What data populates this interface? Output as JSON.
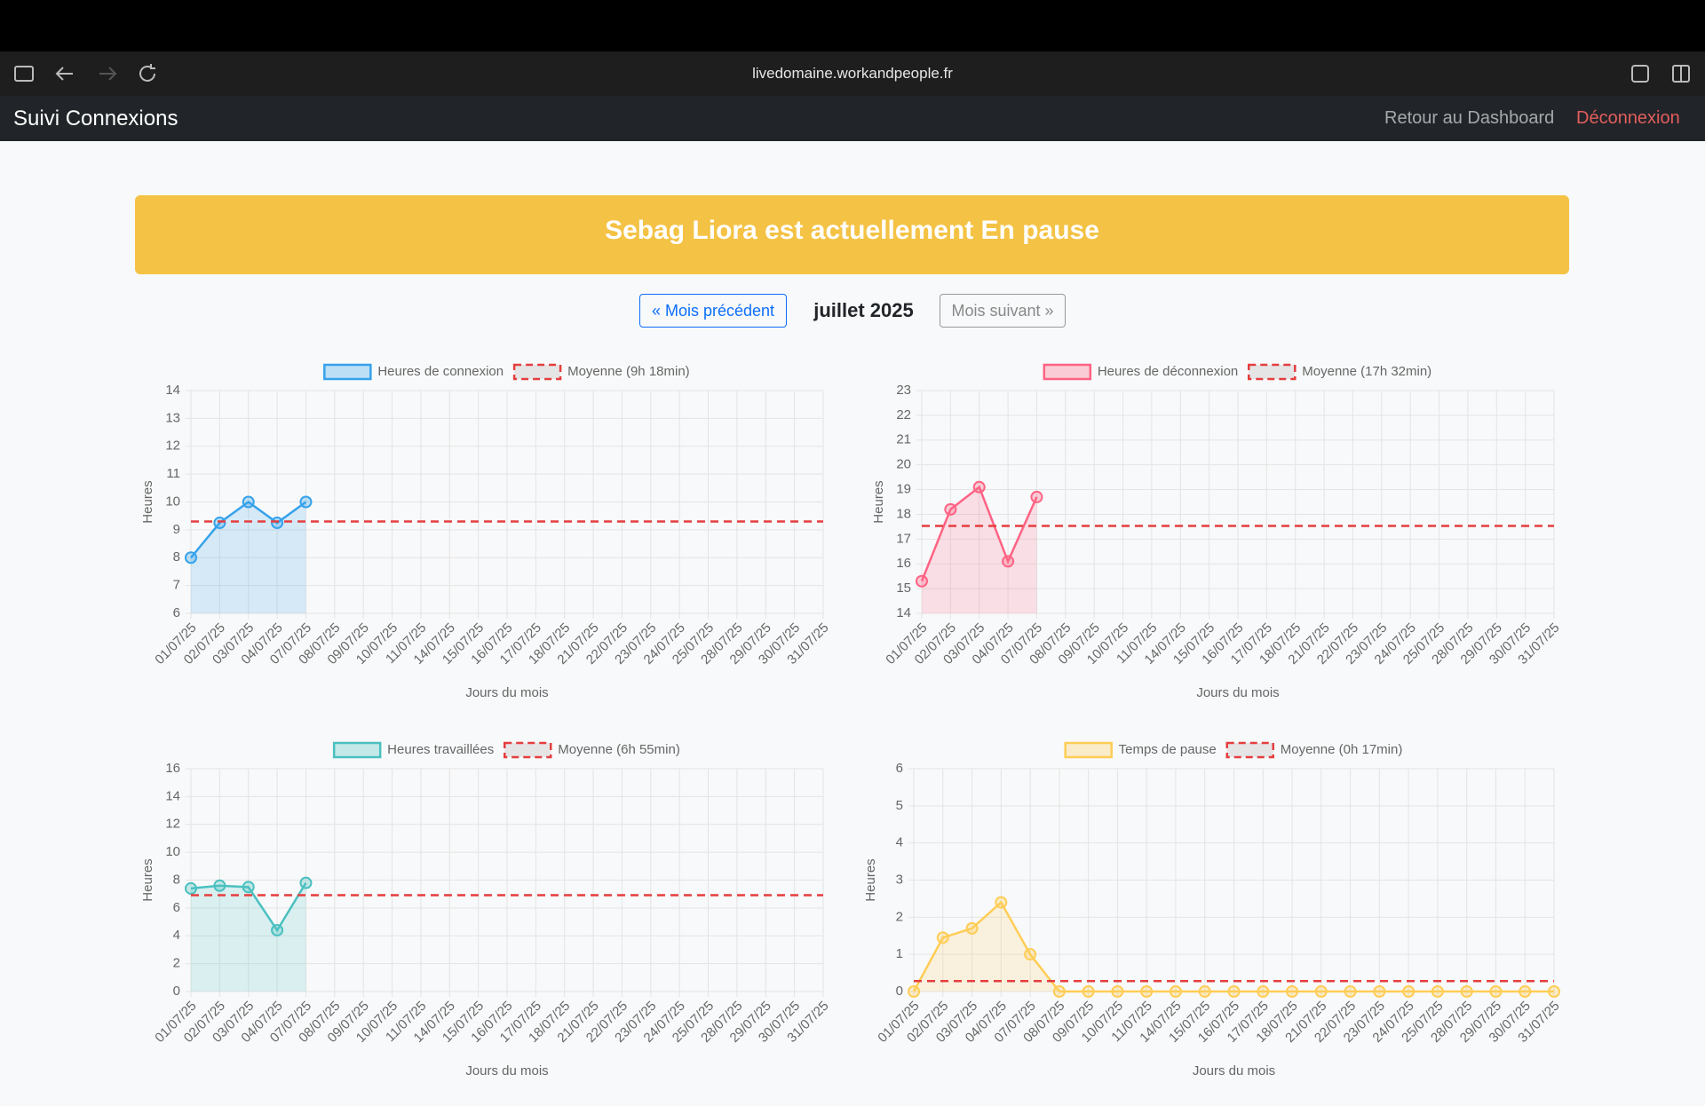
{
  "browser": {
    "url": "livedomaine.workandpeople.fr"
  },
  "navbar": {
    "brand": "Suivi Connexions",
    "links": [
      "Retour au Dashboard",
      "Déconnexion"
    ]
  },
  "banner": {
    "text": "Sebag Liora est actuellement En pause"
  },
  "month_nav": {
    "previous": "« Mois précédent",
    "current": "juillet 2025",
    "next": "Mois suivant »"
  },
  "chart_data": [
    {
      "type": "line",
      "x_label": "Jours du mois",
      "y_label": "Heures",
      "grid": true,
      "categories": [
        "01/07/25",
        "02/07/25",
        "03/07/25",
        "04/07/25",
        "07/07/25",
        "08/07/25",
        "09/07/25",
        "10/07/25",
        "11/07/25",
        "14/07/25",
        "15/07/25",
        "16/07/25",
        "17/07/25",
        "18/07/25",
        "21/07/25",
        "22/07/25",
        "23/07/25",
        "24/07/25",
        "25/07/25",
        "28/07/25",
        "29/07/25",
        "30/07/25",
        "31/07/25"
      ],
      "series": [
        {
          "name": "Heures de connexion",
          "color": "#36a2eb",
          "values": [
            8,
            9.25,
            10,
            9.25,
            10,
            null,
            null,
            null,
            null,
            null,
            null,
            null,
            null,
            null,
            null,
            null,
            null,
            null,
            null,
            null,
            null,
            null,
            null
          ]
        }
      ],
      "average": {
        "name": "Moyenne (9h 18min)",
        "value": 9.3,
        "color": "#e53e3e"
      },
      "ylim": [
        6,
        14
      ],
      "yticks": [
        6,
        7,
        8,
        9,
        10,
        11,
        12,
        13,
        14
      ]
    },
    {
      "type": "line",
      "x_label": "Jours du mois",
      "y_label": "Heures",
      "grid": true,
      "categories": [
        "01/07/25",
        "02/07/25",
        "03/07/25",
        "04/07/25",
        "07/07/25",
        "08/07/25",
        "09/07/25",
        "10/07/25",
        "11/07/25",
        "14/07/25",
        "15/07/25",
        "16/07/25",
        "17/07/25",
        "18/07/25",
        "21/07/25",
        "22/07/25",
        "23/07/25",
        "24/07/25",
        "25/07/25",
        "28/07/25",
        "29/07/25",
        "30/07/25",
        "31/07/25"
      ],
      "series": [
        {
          "name": "Heures de déconnexion",
          "color": "#ff6384",
          "values": [
            15.3,
            18.2,
            19.1,
            16.1,
            18.7,
            null,
            null,
            null,
            null,
            null,
            null,
            null,
            null,
            null,
            null,
            null,
            null,
            null,
            null,
            null,
            null,
            null,
            null
          ]
        }
      ],
      "average": {
        "name": "Moyenne (17h 32min)",
        "value": 17.53,
        "color": "#e53e3e"
      },
      "ylim": [
        14,
        23
      ],
      "yticks": [
        14,
        15,
        16,
        17,
        18,
        19,
        20,
        21,
        22,
        23
      ]
    },
    {
      "type": "line",
      "x_label": "Jours du mois",
      "y_label": "Heures",
      "grid": true,
      "categories": [
        "01/07/25",
        "02/07/25",
        "03/07/25",
        "04/07/25",
        "07/07/25",
        "08/07/25",
        "09/07/25",
        "10/07/25",
        "11/07/25",
        "14/07/25",
        "15/07/25",
        "16/07/25",
        "17/07/25",
        "18/07/25",
        "21/07/25",
        "22/07/25",
        "23/07/25",
        "24/07/25",
        "25/07/25",
        "28/07/25",
        "29/07/25",
        "30/07/25",
        "31/07/25"
      ],
      "series": [
        {
          "name": "Heures travaillées",
          "color": "#4bc0c0",
          "values": [
            7.4,
            7.6,
            7.5,
            4.4,
            7.8,
            null,
            null,
            null,
            null,
            null,
            null,
            null,
            null,
            null,
            null,
            null,
            null,
            null,
            null,
            null,
            null,
            null,
            null
          ]
        }
      ],
      "average": {
        "name": "Moyenne (6h 55min)",
        "value": 6.92,
        "color": "#e53e3e"
      },
      "ylim": [
        0,
        16
      ],
      "yticks": [
        0,
        2,
        4,
        6,
        8,
        10,
        12,
        14,
        16
      ]
    },
    {
      "type": "line",
      "x_label": "Jours du mois",
      "y_label": "Heures",
      "grid": true,
      "categories": [
        "01/07/25",
        "02/07/25",
        "03/07/25",
        "04/07/25",
        "07/07/25",
        "08/07/25",
        "09/07/25",
        "10/07/25",
        "11/07/25",
        "14/07/25",
        "15/07/25",
        "16/07/25",
        "17/07/25",
        "18/07/25",
        "21/07/25",
        "22/07/25",
        "23/07/25",
        "24/07/25",
        "25/07/25",
        "28/07/25",
        "29/07/25",
        "30/07/25",
        "31/07/25"
      ],
      "series": [
        {
          "name": "Temps de pause",
          "color": "#ffcd56",
          "values": [
            0,
            1.45,
            1.7,
            2.4,
            1.0,
            0,
            0,
            0,
            0,
            0,
            0,
            0,
            0,
            0,
            0,
            0,
            0,
            0,
            0,
            0,
            0,
            0,
            0
          ]
        }
      ],
      "average": {
        "name": "Moyenne (0h 17min)",
        "value": 0.28,
        "color": "#e53e3e"
      },
      "ylim": [
        0,
        6
      ],
      "yticks": [
        0,
        1,
        2,
        3,
        4,
        5,
        6
      ]
    }
  ]
}
